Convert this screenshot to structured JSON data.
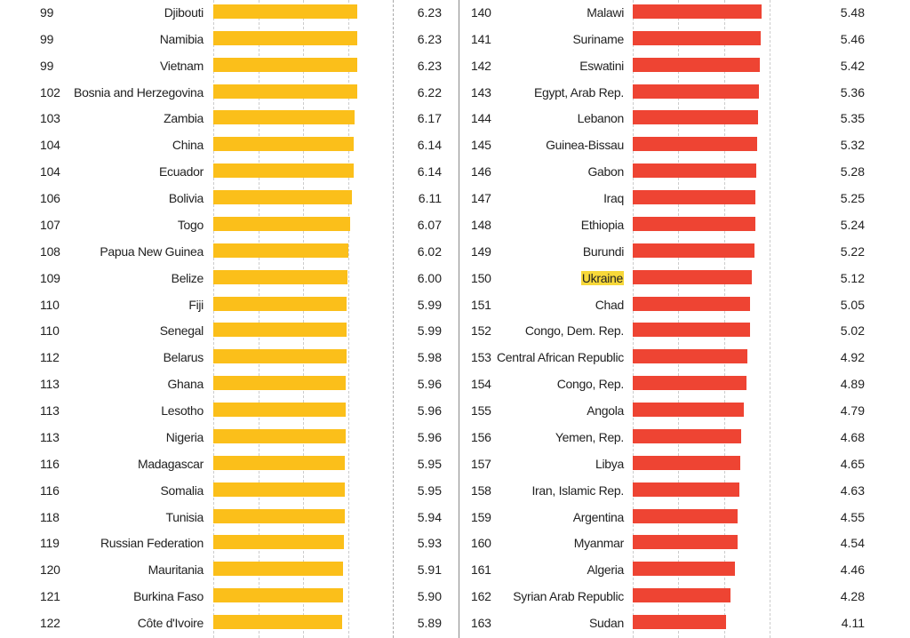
{
  "chart_data": [
    {
      "type": "bar",
      "orientation": "horizontal",
      "color": "#fbbf1a",
      "ranks": [
        99,
        99,
        99,
        102,
        103,
        104,
        104,
        106,
        107,
        108,
        109,
        110,
        110,
        112,
        113,
        113,
        113,
        116,
        116,
        118,
        119,
        120,
        121,
        122
      ],
      "categories": [
        "Djibouti",
        "Namibia",
        "Vietnam",
        "Bosnia and Herzegovina",
        "Zambia",
        "China",
        "Ecuador",
        "Bolivia",
        "Togo",
        "Papua New Guinea",
        "Belize",
        "Fiji",
        "Senegal",
        "Belarus",
        "Ghana",
        "Lesotho",
        "Nigeria",
        "Madagascar",
        "Somalia",
        "Tunisia",
        "Russian Federation",
        "Mauritania",
        "Burkina Faso",
        "Côte d'Ivoire"
      ],
      "values": [
        6.23,
        6.23,
        6.23,
        6.22,
        6.17,
        6.14,
        6.14,
        6.11,
        6.07,
        6.02,
        6.0,
        5.99,
        5.99,
        5.98,
        5.96,
        5.96,
        5.96,
        5.95,
        5.95,
        5.94,
        5.93,
        5.91,
        5.9,
        5.89
      ],
      "grid": true
    },
    {
      "type": "bar",
      "orientation": "horizontal",
      "color": "#ee4433",
      "highlight": {
        "category": "Ukraine",
        "color": "#f7d83a"
      },
      "ranks": [
        140,
        141,
        142,
        143,
        144,
        145,
        146,
        147,
        148,
        149,
        150,
        151,
        152,
        153,
        154,
        155,
        156,
        157,
        158,
        159,
        160,
        161,
        162,
        163
      ],
      "categories": [
        "Malawi",
        "Suriname",
        "Eswatini",
        "Egypt, Arab Rep.",
        "Lebanon",
        "Guinea-Bissau",
        "Gabon",
        "Iraq",
        "Ethiopia",
        "Burundi",
        "Ukraine",
        "Chad",
        "Congo, Dem. Rep.",
        "Central African Republic",
        "Congo, Rep.",
        "Angola",
        "Yemen, Rep.",
        "Libya",
        "Iran, Islamic Rep.",
        "Argentina",
        "Myanmar",
        "Algeria",
        "Syrian Arab Republic",
        "Sudan"
      ],
      "values": [
        5.48,
        5.46,
        5.42,
        5.36,
        5.35,
        5.32,
        5.28,
        5.25,
        5.24,
        5.22,
        5.12,
        5.05,
        5.02,
        4.92,
        4.89,
        4.79,
        4.68,
        4.65,
        4.63,
        4.55,
        4.54,
        4.46,
        4.28,
        4.11
      ],
      "grid": true
    }
  ]
}
